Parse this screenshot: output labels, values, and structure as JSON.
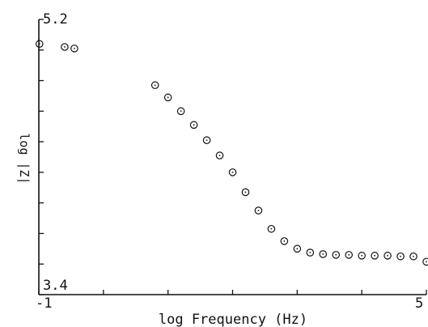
{
  "chart_data": {
    "type": "scatter",
    "title": "",
    "xlabel": "log Frequency (Hz)",
    "ylabel": "log |Z|",
    "xlim": [
      -1,
      5
    ],
    "ylim": [
      3.4,
      5.2
    ],
    "x_tick_labels": [
      "-1",
      "5"
    ],
    "y_tick_labels": [
      "5.2",
      "3.4"
    ],
    "grid": false,
    "legend": "none",
    "marker": "open-circle-with-dot",
    "color": "#111111",
    "series": [
      {
        "x": [
          -0.99,
          -0.6,
          -0.45,
          0.8,
          1.0,
          1.2,
          1.4,
          1.6,
          1.8,
          2.0,
          2.2,
          2.4,
          2.6,
          2.8,
          3.0,
          3.2,
          3.4,
          3.6,
          3.8,
          4.0,
          4.2,
          4.4,
          4.6,
          4.8,
          5.0
        ],
        "y": [
          5.04,
          5.02,
          5.01,
          4.77,
          4.69,
          4.6,
          4.51,
          4.41,
          4.31,
          4.2,
          4.07,
          3.95,
          3.83,
          3.75,
          3.7,
          3.675,
          3.665,
          3.66,
          3.66,
          3.655,
          3.655,
          3.655,
          3.65,
          3.65,
          3.615
        ]
      }
    ]
  }
}
